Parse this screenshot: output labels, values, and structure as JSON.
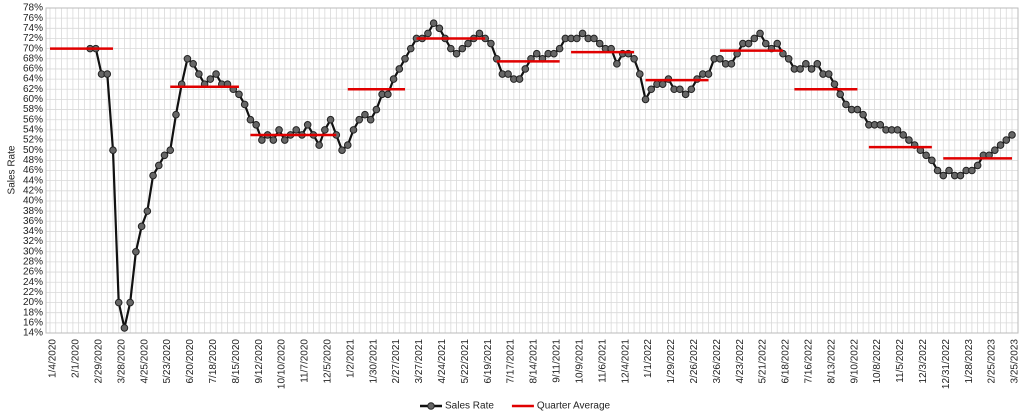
{
  "chart_data": {
    "type": "line",
    "y_label": "Sales Rate",
    "categories": [
      "1/4/2020",
      null,
      null,
      null,
      "2/1/2020",
      null,
      null,
      null,
      "2/29/2020",
      null,
      null,
      null,
      "3/28/2020",
      null,
      null,
      null,
      "4/25/2020",
      null,
      null,
      null,
      "5/23/2020",
      null,
      null,
      null,
      "6/20/2020",
      null,
      null,
      null,
      "7/18/2020",
      null,
      null,
      null,
      "8/15/2020",
      null,
      null,
      null,
      "9/12/2020",
      null,
      null,
      null,
      "10/10/2020",
      null,
      null,
      null,
      "11/7/2020",
      null,
      null,
      null,
      "12/5/2020",
      null,
      null,
      null,
      "1/2/2021",
      null,
      null,
      null,
      "1/30/2021",
      null,
      null,
      null,
      "2/27/2021",
      null,
      null,
      null,
      "3/27/2021",
      null,
      null,
      null,
      "4/24/2021",
      null,
      null,
      null,
      "5/22/2021",
      null,
      null,
      null,
      "6/19/2021",
      null,
      null,
      null,
      "7/17/2021",
      null,
      null,
      null,
      "8/14/2021",
      null,
      null,
      null,
      "9/11/2021",
      null,
      null,
      null,
      "10/9/2021",
      null,
      null,
      null,
      "11/6/2021",
      null,
      null,
      null,
      "12/4/2021",
      null,
      null,
      null,
      "1/1/2022",
      null,
      null,
      null,
      "1/29/2022",
      null,
      null,
      null,
      "2/26/2022",
      null,
      null,
      null,
      "3/26/2022",
      null,
      null,
      null,
      "4/23/2022",
      null,
      null,
      null,
      "5/21/2022",
      null,
      null,
      null,
      "6/18/2022",
      null,
      null,
      null,
      "7/16/2022",
      null,
      null,
      null,
      "8/13/2022",
      null,
      null,
      null,
      "9/10/2022",
      null,
      null,
      null,
      "10/8/2022",
      null,
      null,
      null,
      "11/5/2022",
      null,
      null,
      null,
      "12/3/2022",
      null,
      null,
      null,
      "12/31/2022",
      null,
      null,
      null,
      "1/28/2023",
      null,
      null,
      null,
      "2/25/2023",
      null,
      null,
      null,
      "3/25/2023"
    ],
    "series": [
      {
        "name": "Sales Rate",
        "color": "#111111",
        "marker_color": "#666666",
        "values": [
          null,
          null,
          null,
          null,
          null,
          null,
          null,
          70,
          70,
          65,
          65,
          50,
          20,
          15,
          20,
          30,
          35,
          38,
          45,
          47,
          49,
          50,
          57,
          63,
          68,
          67,
          65,
          63,
          64,
          65,
          63,
          63,
          62,
          61,
          59,
          56,
          55,
          52,
          53,
          52,
          54,
          52,
          53,
          54,
          53,
          55,
          53,
          51,
          54,
          56,
          53,
          50,
          51,
          54,
          56,
          57,
          56,
          58,
          61,
          61,
          64,
          66,
          68,
          70,
          72,
          72,
          73,
          75,
          74,
          72,
          70,
          69,
          70,
          71,
          72,
          73,
          72,
          71,
          68,
          65,
          65,
          64,
          64,
          66,
          68,
          69,
          68,
          69,
          69,
          70,
          72,
          72,
          72,
          73,
          72,
          72,
          71,
          70,
          70,
          67,
          69,
          69,
          68,
          65,
          60,
          62,
          63,
          63,
          64,
          62,
          62,
          61,
          62,
          64,
          65,
          65,
          68,
          68,
          67,
          67,
          69,
          71,
          71,
          72,
          73,
          71,
          70,
          71,
          69,
          68,
          66,
          66,
          67,
          66,
          67,
          65,
          65,
          63,
          61,
          59,
          58,
          58,
          57,
          55,
          55,
          55,
          54,
          54,
          54,
          53,
          52,
          51,
          50,
          49,
          48,
          46,
          45,
          46,
          45,
          45,
          46,
          46,
          47,
          49,
          49,
          50,
          51,
          52,
          53
        ]
      },
      {
        "name": "Quarter Average",
        "color": "#e00000",
        "values": [
          70,
          70,
          70,
          70,
          70,
          70,
          70,
          70,
          70,
          70,
          70,
          70,
          null,
          null,
          null,
          null,
          null,
          null,
          null,
          null,
          null,
          62.5,
          62.5,
          62.5,
          62.5,
          62.5,
          62.5,
          62.5,
          62.5,
          62.5,
          62.5,
          62.5,
          62.5,
          62.5,
          null,
          53,
          53,
          53,
          53,
          53,
          53,
          53,
          53,
          53,
          53,
          53,
          53,
          53,
          53,
          53,
          53,
          null,
          62,
          62,
          62,
          62,
          62,
          62,
          62,
          62,
          62,
          62,
          62,
          null,
          72,
          72,
          72,
          72,
          72,
          72,
          72,
          72,
          72,
          72,
          72,
          72,
          72,
          null,
          67.5,
          67.5,
          67.5,
          67.5,
          67.5,
          67.5,
          67.5,
          67.5,
          67.5,
          67.5,
          67.5,
          67.5,
          null,
          69.3,
          69.3,
          69.3,
          69.3,
          69.3,
          69.3,
          69.3,
          69.3,
          69.3,
          69.3,
          69.3,
          69.3,
          null,
          63.8,
          63.8,
          63.8,
          63.8,
          63.8,
          63.8,
          63.8,
          63.8,
          63.8,
          63.8,
          63.8,
          63.8,
          null,
          69.6,
          69.6,
          69.6,
          69.6,
          69.6,
          69.6,
          69.6,
          69.6,
          69.6,
          69.6,
          69.6,
          69.6,
          null,
          62,
          62,
          62,
          62,
          62,
          62,
          62,
          62,
          62,
          62,
          62,
          62,
          null,
          50.6,
          50.6,
          50.6,
          50.6,
          50.6,
          50.6,
          50.6,
          50.6,
          50.6,
          50.6,
          50.6,
          50.6,
          null,
          48.4,
          48.4,
          48.4,
          48.4,
          48.4,
          48.4,
          48.4,
          48.4,
          48.4,
          48.4,
          48.4,
          48.4,
          48.4
        ]
      }
    ],
    "ylim": [
      14,
      78
    ],
    "yticks": [
      {
        "value": 14,
        "label": "14%"
      },
      {
        "value": 16,
        "label": "16%"
      },
      {
        "value": 18,
        "label": "18%"
      },
      {
        "value": 20,
        "label": "20%"
      },
      {
        "value": 22,
        "label": "22%"
      },
      {
        "value": 24,
        "label": "24%"
      },
      {
        "value": 26,
        "label": "26%"
      },
      {
        "value": 28,
        "label": "28%"
      },
      {
        "value": 30,
        "label": "30%"
      },
      {
        "value": 32,
        "label": "32%"
      },
      {
        "value": 34,
        "label": "34%"
      },
      {
        "value": 36,
        "label": "36%"
      },
      {
        "value": 38,
        "label": "38%"
      },
      {
        "value": 40,
        "label": "40%"
      },
      {
        "value": 42,
        "label": "42%"
      },
      {
        "value": 44,
        "label": "44%"
      },
      {
        "value": 46,
        "label": "46%"
      },
      {
        "value": 48,
        "label": "48%"
      },
      {
        "value": 50,
        "label": "50%"
      },
      {
        "value": 52,
        "label": "52%"
      },
      {
        "value": 54,
        "label": "54%"
      },
      {
        "value": 56,
        "label": "56%"
      },
      {
        "value": 58,
        "label": "58%"
      },
      {
        "value": 60,
        "label": "60%"
      },
      {
        "value": 62,
        "label": "62%"
      },
      {
        "value": 64,
        "label": "64%"
      },
      {
        "value": 66,
        "label": "66%"
      },
      {
        "value": 68,
        "label": "68%"
      },
      {
        "value": 70,
        "label": "70%"
      },
      {
        "value": 72,
        "label": "72%"
      },
      {
        "value": 74,
        "label": "74%"
      },
      {
        "value": 76,
        "label": "76%"
      },
      {
        "value": 78,
        "label": "78%"
      }
    ],
    "grid": true,
    "legend": "bottom"
  }
}
